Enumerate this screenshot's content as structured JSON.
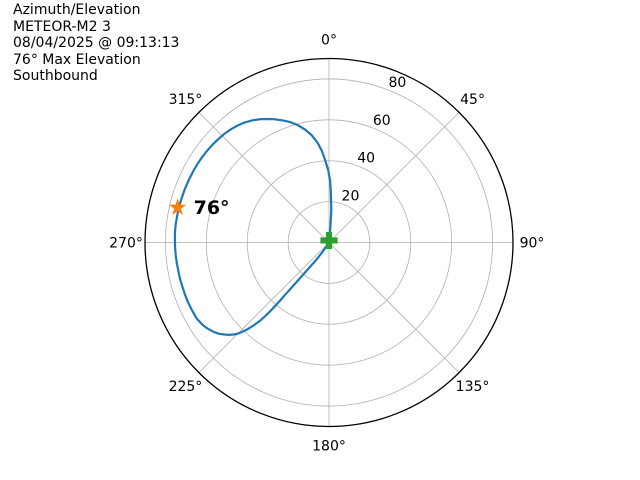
{
  "header": {
    "title": "Azimuth/Elevation",
    "satellite": "METEOR-M2 3",
    "pass_time": "08/04/2025 @ 09:13:13",
    "max_elevation_text": "76° Max Elevation",
    "direction": "Southbound"
  },
  "chart_data": {
    "type": "line",
    "projection": "polar",
    "title": "Azimuth/Elevation",
    "satellite": "METEOR-M2 3",
    "pass_time": "08/04/2025 @ 09:13:13",
    "direction": "Southbound",
    "max_elevation_deg": 76,
    "radial_axis": "elevation degrees, 0 at center to 90 at outer edge",
    "angular_axis": "azimuth degrees, 0 at top (north), clockwise",
    "grid": true,
    "azimuth_ticks_deg": [
      0,
      45,
      90,
      135,
      180,
      225,
      270,
      315
    ],
    "azimuth_tick_labels": [
      "0°",
      "45°",
      "90°",
      "135°",
      "180°",
      "225°",
      "270°",
      "315°"
    ],
    "elevation_rings_deg": [
      20,
      40,
      60,
      80
    ],
    "elevation_ring_labels": [
      "20",
      "40",
      "60",
      "80"
    ],
    "elevation_range": [
      0,
      90
    ],
    "track_azel": [
      [
        6,
        0
      ],
      [
        5.5,
        4
      ],
      [
        5,
        8
      ],
      [
        4.5,
        12
      ],
      [
        4,
        16
      ],
      [
        3,
        20
      ],
      [
        2,
        25
      ],
      [
        1,
        30
      ],
      [
        359.5,
        35
      ],
      [
        357.5,
        40
      ],
      [
        355.5,
        45
      ],
      [
        353.5,
        49
      ],
      [
        351,
        53
      ],
      [
        348,
        56.5
      ],
      [
        345,
        59.5
      ],
      [
        342,
        62
      ],
      [
        339,
        64
      ],
      [
        336,
        66
      ],
      [
        333.5,
        67.5
      ],
      [
        331,
        69
      ],
      [
        328,
        70.5
      ],
      [
        325,
        71.7
      ],
      [
        322,
        72.6
      ],
      [
        319,
        73.3
      ],
      [
        316,
        73.8
      ],
      [
        313,
        74.1
      ],
      [
        310,
        74.4
      ],
      [
        307,
        74.6
      ],
      [
        304,
        74.8
      ],
      [
        301,
        74.9
      ],
      [
        298,
        75
      ],
      [
        294,
        75.1
      ],
      [
        290,
        75.2
      ],
      [
        286,
        75.3
      ],
      [
        283,
        75.4
      ],
      [
        280,
        75.4
      ],
      [
        277,
        75.5
      ],
      [
        274,
        75.5
      ],
      [
        271,
        75.4
      ],
      [
        268,
        75.3
      ],
      [
        265,
        75.2
      ],
      [
        262,
        75.1
      ],
      [
        259,
        75
      ],
      [
        256,
        75
      ],
      [
        253,
        74.9
      ],
      [
        250,
        74.9
      ],
      [
        247,
        74.9
      ],
      [
        244,
        74.8
      ],
      [
        242,
        74.7
      ],
      [
        240,
        74.6
      ],
      [
        238.5,
        74.2
      ],
      [
        237,
        73.8
      ],
      [
        235.5,
        73.2
      ],
      [
        233.8,
        72.3
      ],
      [
        232,
        71.2
      ],
      [
        230.3,
        69.9
      ],
      [
        228.7,
        68.2
      ],
      [
        227.2,
        66.5
      ],
      [
        225.8,
        64.5
      ],
      [
        224.8,
        62.5
      ],
      [
        223.8,
        60
      ],
      [
        223,
        57.5
      ],
      [
        222.2,
        54.5
      ],
      [
        221.5,
        51.5
      ],
      [
        221,
        48.5
      ],
      [
        220.6,
        45
      ],
      [
        220.3,
        41
      ],
      [
        220.1,
        37
      ],
      [
        220,
        33
      ],
      [
        219.7,
        29
      ],
      [
        219.4,
        25
      ],
      [
        219,
        21
      ],
      [
        218.4,
        17.5
      ],
      [
        217.6,
        14
      ],
      [
        216.6,
        11
      ],
      [
        215.5,
        8
      ],
      [
        214.5,
        5
      ],
      [
        213.7,
        2.5
      ],
      [
        213.2,
        0
      ]
    ],
    "max_elevation_marker": {
      "symbol": "star",
      "azimuth_deg": 283,
      "elevation_deg": 76,
      "label": "76°",
      "color": "#ff7f0e"
    },
    "position_marker": {
      "symbol": "plus",
      "azimuth_deg": 0,
      "elevation_deg": 1,
      "color": "#2ca02c"
    },
    "colors": {
      "track": "#1f77b4",
      "grid": "#b0b0b0",
      "outline": "#000000",
      "text": "#000000"
    }
  }
}
